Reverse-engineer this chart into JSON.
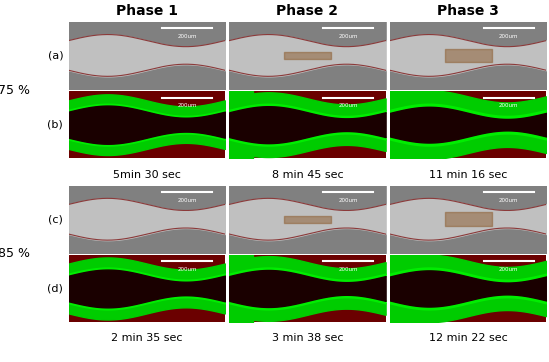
{
  "title_cols": [
    "Phase 1",
    "Phase 2",
    "Phase 3"
  ],
  "row_labels": [
    "(a)",
    "(b)",
    "(c)",
    "(d)"
  ],
  "group_labels": [
    "75 %",
    "85 %"
  ],
  "time_labels_75": [
    "5min 30 sec",
    "8 min 45 sec",
    "11 min 16 sec"
  ],
  "time_labels_85": [
    "2 min 35 sec",
    "3 min 38 sec",
    "12 min 22 sec"
  ],
  "scale_text": "200um",
  "bg_color": "#ffffff",
  "title_fontsize": 10,
  "label_fontsize": 8,
  "time_fontsize": 8,
  "group_label_fontsize": 9,
  "scalebar_color": "#ffffff",
  "row_a_bg": "#b0b0b0",
  "row_b_bg": "#8b0000",
  "row_c_bg": "#b0b0b0",
  "row_d_bg": "#8b0000",
  "green_color": "#00ff00",
  "dark_color": "#1a0000"
}
